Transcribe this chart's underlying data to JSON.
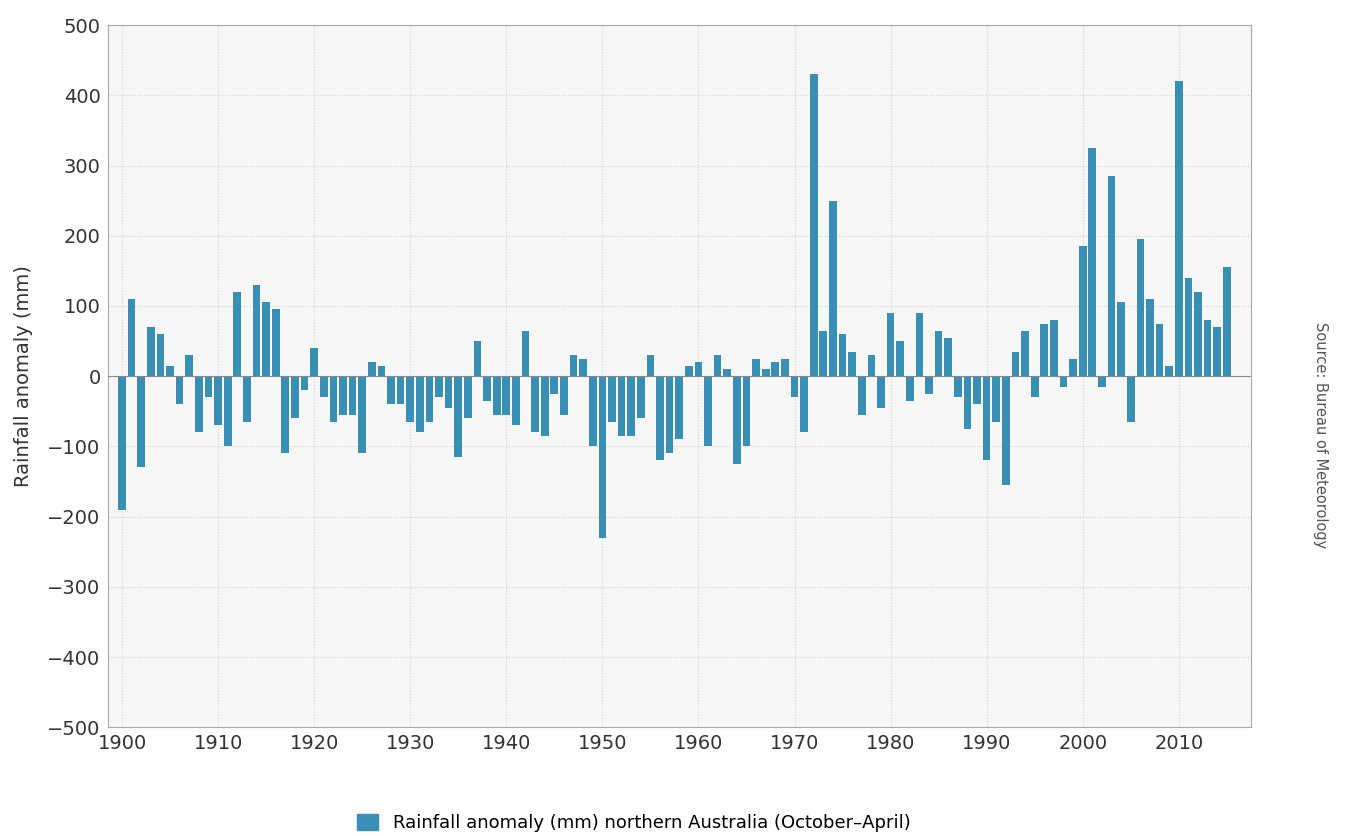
{
  "years": [
    1900,
    1901,
    1902,
    1903,
    1904,
    1905,
    1906,
    1907,
    1908,
    1909,
    1910,
    1911,
    1912,
    1913,
    1914,
    1915,
    1916,
    1917,
    1918,
    1919,
    1920,
    1921,
    1922,
    1923,
    1924,
    1925,
    1926,
    1927,
    1928,
    1929,
    1930,
    1931,
    1932,
    1933,
    1934,
    1935,
    1936,
    1937,
    1938,
    1939,
    1940,
    1941,
    1942,
    1943,
    1944,
    1945,
    1946,
    1947,
    1948,
    1949,
    1950,
    1951,
    1952,
    1953,
    1954,
    1955,
    1956,
    1957,
    1958,
    1959,
    1960,
    1961,
    1962,
    1963,
    1964,
    1965,
    1966,
    1967,
    1968,
    1969,
    1970,
    1971,
    1972,
    1973,
    1974,
    1975,
    1976,
    1977,
    1978,
    1979,
    1980,
    1981,
    1982,
    1983,
    1984,
    1985,
    1986,
    1987,
    1988,
    1989,
    1990,
    1991,
    1992,
    1993,
    1994,
    1995,
    1996,
    1997,
    1998,
    1999,
    2000,
    2001,
    2002,
    2003,
    2004,
    2005,
    2006,
    2007,
    2008,
    2009,
    2010,
    2011,
    2012,
    2013,
    2014,
    2015
  ],
  "values": [
    -190,
    110,
    -130,
    70,
    60,
    15,
    -40,
    30,
    -80,
    -30,
    -70,
    -100,
    120,
    -65,
    130,
    105,
    95,
    -110,
    -60,
    -20,
    40,
    -30,
    -65,
    -55,
    -55,
    -110,
    20,
    15,
    -40,
    -40,
    -65,
    -80,
    -65,
    -30,
    -45,
    -115,
    -60,
    50,
    -35,
    -55,
    -55,
    -70,
    65,
    -80,
    -85,
    -25,
    -55,
    30,
    25,
    -100,
    -230,
    -65,
    -85,
    -85,
    -60,
    30,
    -120,
    -110,
    -90,
    15,
    20,
    -100,
    30,
    10,
    -125,
    -100,
    25,
    10,
    20,
    25,
    -30,
    -80,
    430,
    65,
    250,
    60,
    35,
    -55,
    30,
    -45,
    90,
    50,
    -35,
    90,
    -25,
    65,
    55,
    -30,
    -75,
    -40,
    -120,
    -65,
    -155,
    35,
    65,
    -30,
    75,
    80,
    -15,
    25,
    185,
    325,
    -15,
    285,
    105,
    -65,
    195,
    110,
    75,
    15,
    420,
    140,
    120,
    80,
    70,
    155
  ],
  "bar_color": "#3a8fb5",
  "ylabel": "Rainfall anomaly (mm)",
  "ylim": [
    -500,
    500
  ],
  "yticks": [
    -500,
    -400,
    -300,
    -200,
    -100,
    0,
    100,
    200,
    300,
    400,
    500
  ],
  "ytick_labels": [
    "−500",
    "−400",
    "−300",
    "−200",
    "−100",
    "0",
    "100",
    "200",
    "300",
    "400",
    "500"
  ],
  "xlim": [
    1898.5,
    2017.5
  ],
  "xticks": [
    1900,
    1910,
    1920,
    1930,
    1940,
    1950,
    1960,
    1970,
    1980,
    1990,
    2000,
    2010
  ],
  "legend_label": "Rainfall anomaly (mm) northern Australia (October–April)",
  "source_text": "Source: Bureau of Meteorology",
  "grid_color": "#d0d0d0",
  "plot_bg_color": "#f7f7f7",
  "fig_bg_color": "#ffffff",
  "bar_width": 0.8
}
